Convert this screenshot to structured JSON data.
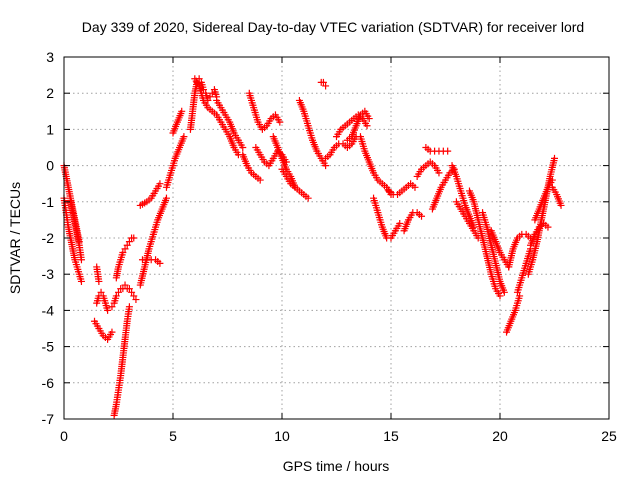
{
  "chart_data": {
    "type": "scatter",
    "title": "Day 339 of 2020, Sidereal Day-to-day VTEC variation (SDTVAR) for receiver lord",
    "xlabel": "GPS time / hours",
    "ylabel": "SDTVAR / TECUs",
    "xlim": [
      0,
      25
    ],
    "ylim": [
      -7,
      3
    ],
    "xticks": [
      0,
      5,
      10,
      15,
      20,
      25
    ],
    "xtick_labels": [
      "0",
      "5",
      "10",
      "15",
      "20",
      "25"
    ],
    "yticks": [
      -7,
      -6,
      -5,
      -4,
      -3,
      -2,
      -1,
      0,
      1,
      2,
      3
    ],
    "ytick_labels": [
      "-7",
      "-6",
      "-5",
      "-4",
      "-3",
      "-2",
      "-1",
      "0",
      "1",
      "2",
      "3"
    ],
    "grid": true,
    "legend": "none",
    "marker": "+",
    "marker_color": "#ff0000",
    "series": [
      {
        "name": "arc01",
        "x": [
          0.0,
          0.1,
          0.2,
          0.3,
          0.4,
          0.5,
          0.6,
          0.7,
          0.8
        ],
        "y": [
          -0.9,
          -1.3,
          -1.7,
          -2.0,
          -2.3,
          -2.6,
          -2.8,
          -3.0,
          -3.2
        ]
      },
      {
        "name": "arc02",
        "x": [
          0.0,
          0.1,
          0.2,
          0.3,
          0.4,
          0.5,
          0.6,
          0.7
        ],
        "y": [
          0.0,
          -0.3,
          -0.6,
          -0.9,
          -1.2,
          -1.5,
          -1.8,
          -2.1
        ]
      },
      {
        "name": "arc03",
        "x": [
          0.3,
          0.4,
          0.5,
          0.6,
          0.7,
          0.8
        ],
        "y": [
          -1.0,
          -1.3,
          -1.6,
          -1.9,
          -2.2,
          -2.6
        ]
      },
      {
        "name": "arc04",
        "x": [
          1.4,
          1.6,
          1.8,
          2.0,
          2.2
        ],
        "y": [
          -4.3,
          -4.5,
          -4.7,
          -4.8,
          -4.6
        ]
      },
      {
        "name": "arc05",
        "x": [
          1.5,
          1.6,
          1.7,
          1.8,
          1.9,
          2.0
        ],
        "y": [
          -3.8,
          -3.6,
          -3.5,
          -3.6,
          -3.8,
          -4.0
        ]
      },
      {
        "name": "arc06",
        "x": [
          1.5,
          1.6
        ],
        "y": [
          -2.8,
          -3.2
        ]
      },
      {
        "name": "arc07",
        "x": [
          2.3,
          2.4,
          2.5,
          2.6,
          2.7,
          2.8,
          2.9,
          3.0
        ],
        "y": [
          -6.9,
          -6.6,
          -6.2,
          -5.8,
          -5.3,
          -4.8,
          -4.3,
          -3.9
        ]
      },
      {
        "name": "arc08",
        "x": [
          2.2,
          2.3,
          2.4,
          2.5,
          2.6,
          2.7,
          2.8,
          2.9,
          3.0,
          3.1,
          3.2,
          3.3
        ],
        "y": [
          -3.9,
          -3.8,
          -3.6,
          -3.5,
          -3.4,
          -3.4,
          -3.3,
          -3.4,
          -3.4,
          -3.5,
          -3.6,
          -3.7
        ]
      },
      {
        "name": "arc09",
        "x": [
          2.4,
          2.5,
          2.6,
          2.7,
          2.8,
          2.9,
          3.0,
          3.1,
          3.2
        ],
        "y": [
          -3.1,
          -2.8,
          -2.6,
          -2.4,
          -2.3,
          -2.2,
          -2.1,
          -2.0,
          -2.0
        ]
      },
      {
        "name": "arc10",
        "x": [
          3.5,
          3.7,
          3.9,
          4.1,
          4.3,
          4.5,
          4.7
        ],
        "y": [
          -3.3,
          -2.8,
          -2.3,
          -1.9,
          -1.5,
          -1.2,
          -0.9
        ]
      },
      {
        "name": "arc11",
        "x": [
          3.6,
          3.8,
          4.0,
          4.2,
          4.4
        ],
        "y": [
          -2.6,
          -2.6,
          -2.6,
          -2.6,
          -2.7
        ]
      },
      {
        "name": "arc12",
        "x": [
          3.5,
          3.8,
          4.0,
          4.2,
          4.4
        ],
        "y": [
          -1.1,
          -1.0,
          -0.9,
          -0.7,
          -0.5
        ]
      },
      {
        "name": "arc13",
        "x": [
          4.7,
          4.9,
          5.1,
          5.3,
          5.5
        ],
        "y": [
          -0.6,
          -0.2,
          0.2,
          0.5,
          0.8
        ]
      },
      {
        "name": "arc14",
        "x": [
          5.0,
          5.2,
          5.4
        ],
        "y": [
          0.9,
          1.2,
          1.5
        ]
      },
      {
        "name": "arc15",
        "x": [
          5.8,
          5.9,
          6.0,
          6.1,
          6.2,
          6.3,
          6.4,
          6.5,
          6.6,
          6.7,
          6.8,
          6.9,
          7.0
        ],
        "y": [
          1.0,
          1.5,
          2.0,
          2.3,
          2.4,
          2.3,
          2.1,
          2.0,
          1.8,
          1.9,
          2.0,
          2.1,
          1.9
        ]
      },
      {
        "name": "arc16",
        "x": [
          6.0,
          6.2,
          6.4,
          6.6,
          6.8,
          7.0,
          7.2,
          7.4,
          7.6,
          7.8,
          8.0
        ],
        "y": [
          2.4,
          2.2,
          1.8,
          1.6,
          1.5,
          1.4,
          1.2,
          1.0,
          0.8,
          0.5,
          0.3
        ]
      },
      {
        "name": "arc17",
        "x": [
          7.0,
          7.2,
          7.4,
          7.6,
          7.8,
          8.0,
          8.2
        ],
        "y": [
          1.8,
          1.6,
          1.4,
          1.2,
          0.9,
          0.7,
          0.5
        ]
      },
      {
        "name": "arc18",
        "x": [
          8.2,
          8.4,
          8.6,
          8.8,
          9.0
        ],
        "y": [
          0.3,
          0.0,
          -0.2,
          -0.3,
          -0.4
        ]
      },
      {
        "name": "arc19",
        "x": [
          8.5,
          8.7,
          8.9,
          9.1,
          9.3,
          9.5,
          9.7,
          9.9
        ],
        "y": [
          2.0,
          1.6,
          1.2,
          1.0,
          1.1,
          1.3,
          1.4,
          1.2
        ]
      },
      {
        "name": "arc20",
        "x": [
          8.8,
          9.0,
          9.2,
          9.4,
          9.6,
          9.8,
          10.0,
          10.2
        ],
        "y": [
          0.5,
          0.3,
          0.1,
          0.0,
          0.2,
          0.4,
          0.3,
          0.1
        ]
      },
      {
        "name": "arc21",
        "x": [
          9.6,
          9.8,
          10.0,
          10.2,
          10.4,
          10.6
        ],
        "y": [
          0.8,
          0.5,
          0.2,
          -0.1,
          -0.3,
          -0.6
        ]
      },
      {
        "name": "arc22",
        "x": [
          10.0,
          10.2,
          10.4,
          10.6,
          10.8,
          11.0,
          11.2
        ],
        "y": [
          -0.1,
          -0.3,
          -0.5,
          -0.6,
          -0.7,
          -0.8,
          -0.9
        ]
      },
      {
        "name": "arc23",
        "x": [
          10.8,
          11.0,
          11.2,
          11.4,
          11.6,
          11.8,
          12.0
        ],
        "y": [
          1.8,
          1.5,
          1.1,
          0.7,
          0.4,
          0.2,
          0.0
        ]
      },
      {
        "name": "arc24",
        "x": [
          11.8,
          11.9,
          12.0
        ],
        "y": [
          2.3,
          2.3,
          2.2
        ]
      },
      {
        "name": "arc25",
        "x": [
          12.0,
          12.2,
          12.4,
          12.6,
          12.8,
          13.0,
          13.2,
          13.4
        ],
        "y": [
          0.2,
          0.3,
          0.5,
          0.6,
          0.6,
          0.5,
          0.6,
          0.8
        ]
      },
      {
        "name": "arc26",
        "x": [
          12.5,
          12.7,
          12.9,
          13.1,
          13.3,
          13.5,
          13.7,
          13.9
        ],
        "y": [
          0.8,
          1.0,
          1.1,
          1.2,
          1.3,
          1.4,
          1.3,
          1.1
        ]
      },
      {
        "name": "arc27",
        "x": [
          13.0,
          13.2,
          13.4,
          13.6,
          13.8,
          14.0
        ],
        "y": [
          0.7,
          0.8,
          1.1,
          1.4,
          1.5,
          1.3
        ]
      },
      {
        "name": "arc28",
        "x": [
          13.6,
          13.8,
          14.0,
          14.2,
          14.4,
          14.6,
          14.8,
          15.0
        ],
        "y": [
          0.8,
          0.4,
          0.1,
          -0.2,
          -0.4,
          -0.5,
          -0.6,
          -0.8
        ]
      },
      {
        "name": "arc29",
        "x": [
          14.2,
          14.4,
          14.6,
          14.8,
          15.0,
          15.2,
          15.4
        ],
        "y": [
          -0.9,
          -1.3,
          -1.7,
          -2.0,
          -2.0,
          -1.8,
          -1.6
        ]
      },
      {
        "name": "arc30",
        "x": [
          14.9,
          15.1,
          15.3,
          15.5,
          15.7,
          15.9,
          16.1
        ],
        "y": [
          -0.7,
          -0.8,
          -0.8,
          -0.7,
          -0.6,
          -0.5,
          -0.6
        ]
      },
      {
        "name": "arc31",
        "x": [
          15.6,
          15.8,
          16.0,
          16.2,
          16.4
        ],
        "y": [
          -1.8,
          -1.5,
          -1.3,
          -1.3,
          -1.4
        ]
      },
      {
        "name": "arc32",
        "x": [
          16.2,
          16.4,
          16.6,
          16.8,
          17.0,
          17.2
        ],
        "y": [
          -0.3,
          -0.1,
          0.0,
          0.1,
          0.0,
          -0.2
        ]
      },
      {
        "name": "arc33",
        "x": [
          16.6,
          16.8,
          17.0,
          17.2,
          17.4,
          17.6
        ],
        "y": [
          0.5,
          0.4,
          0.4,
          0.4,
          0.4,
          0.4
        ]
      },
      {
        "name": "arc34",
        "x": [
          16.9,
          17.1,
          17.3,
          17.5,
          17.7,
          17.9
        ],
        "y": [
          -1.2,
          -0.9,
          -0.6,
          -0.4,
          -0.2,
          -0.1
        ]
      },
      {
        "name": "arc35",
        "x": [
          17.8,
          18.0,
          18.2,
          18.4,
          18.6,
          18.8
        ],
        "y": [
          0.0,
          -0.3,
          -0.7,
          -1.1,
          -1.4,
          -1.7
        ]
      },
      {
        "name": "arc36",
        "x": [
          18.0,
          18.2,
          18.4,
          18.6,
          18.8,
          19.0
        ],
        "y": [
          -1.0,
          -1.2,
          -1.4,
          -1.6,
          -1.8,
          -2.0
        ]
      },
      {
        "name": "arc37",
        "x": [
          18.6,
          18.8,
          19.0,
          19.2,
          19.4,
          19.6,
          19.8,
          20.0
        ],
        "y": [
          -0.7,
          -1.0,
          -1.5,
          -2.0,
          -2.5,
          -3.0,
          -3.4,
          -3.6
        ]
      },
      {
        "name": "arc38",
        "x": [
          19.2,
          19.4,
          19.6,
          19.8,
          20.0,
          20.2
        ],
        "y": [
          -1.3,
          -1.7,
          -2.2,
          -2.7,
          -3.2,
          -3.5
        ]
      },
      {
        "name": "arc39",
        "x": [
          19.6,
          19.8,
          20.0,
          20.2,
          20.4
        ],
        "y": [
          -1.8,
          -2.1,
          -2.4,
          -2.6,
          -2.8
        ]
      },
      {
        "name": "arc40",
        "x": [
          20.3,
          20.5,
          20.7,
          20.9
        ],
        "y": [
          -4.6,
          -4.3,
          -4.0,
          -3.6
        ]
      },
      {
        "name": "arc41",
        "x": [
          20.4,
          20.6,
          20.8,
          21.0,
          21.2,
          21.4
        ],
        "y": [
          -2.8,
          -2.3,
          -2.0,
          -1.9,
          -1.9,
          -2.0
        ]
      },
      {
        "name": "arc42",
        "x": [
          20.8,
          21.0,
          21.2,
          21.4
        ],
        "y": [
          -3.5,
          -3.1,
          -2.7,
          -2.3
        ]
      },
      {
        "name": "arc43",
        "x": [
          21.3,
          21.5,
          21.7,
          21.9,
          22.1,
          22.3,
          22.5
        ],
        "y": [
          -3.0,
          -2.6,
          -2.1,
          -1.5,
          -0.9,
          -0.3,
          0.2
        ]
      },
      {
        "name": "arc44",
        "x": [
          21.6,
          21.8,
          22.0,
          22.2,
          22.4
        ],
        "y": [
          -1.5,
          -1.2,
          -0.9,
          -0.6,
          -0.4
        ]
      },
      {
        "name": "arc45",
        "x": [
          21.4,
          21.6,
          21.8,
          22.0,
          22.2
        ],
        "y": [
          -2.2,
          -1.9,
          -1.7,
          -1.6,
          -1.7
        ]
      },
      {
        "name": "arc46",
        "x": [
          22.4,
          22.6,
          22.8
        ],
        "y": [
          -0.6,
          -0.8,
          -1.1
        ]
      }
    ]
  }
}
